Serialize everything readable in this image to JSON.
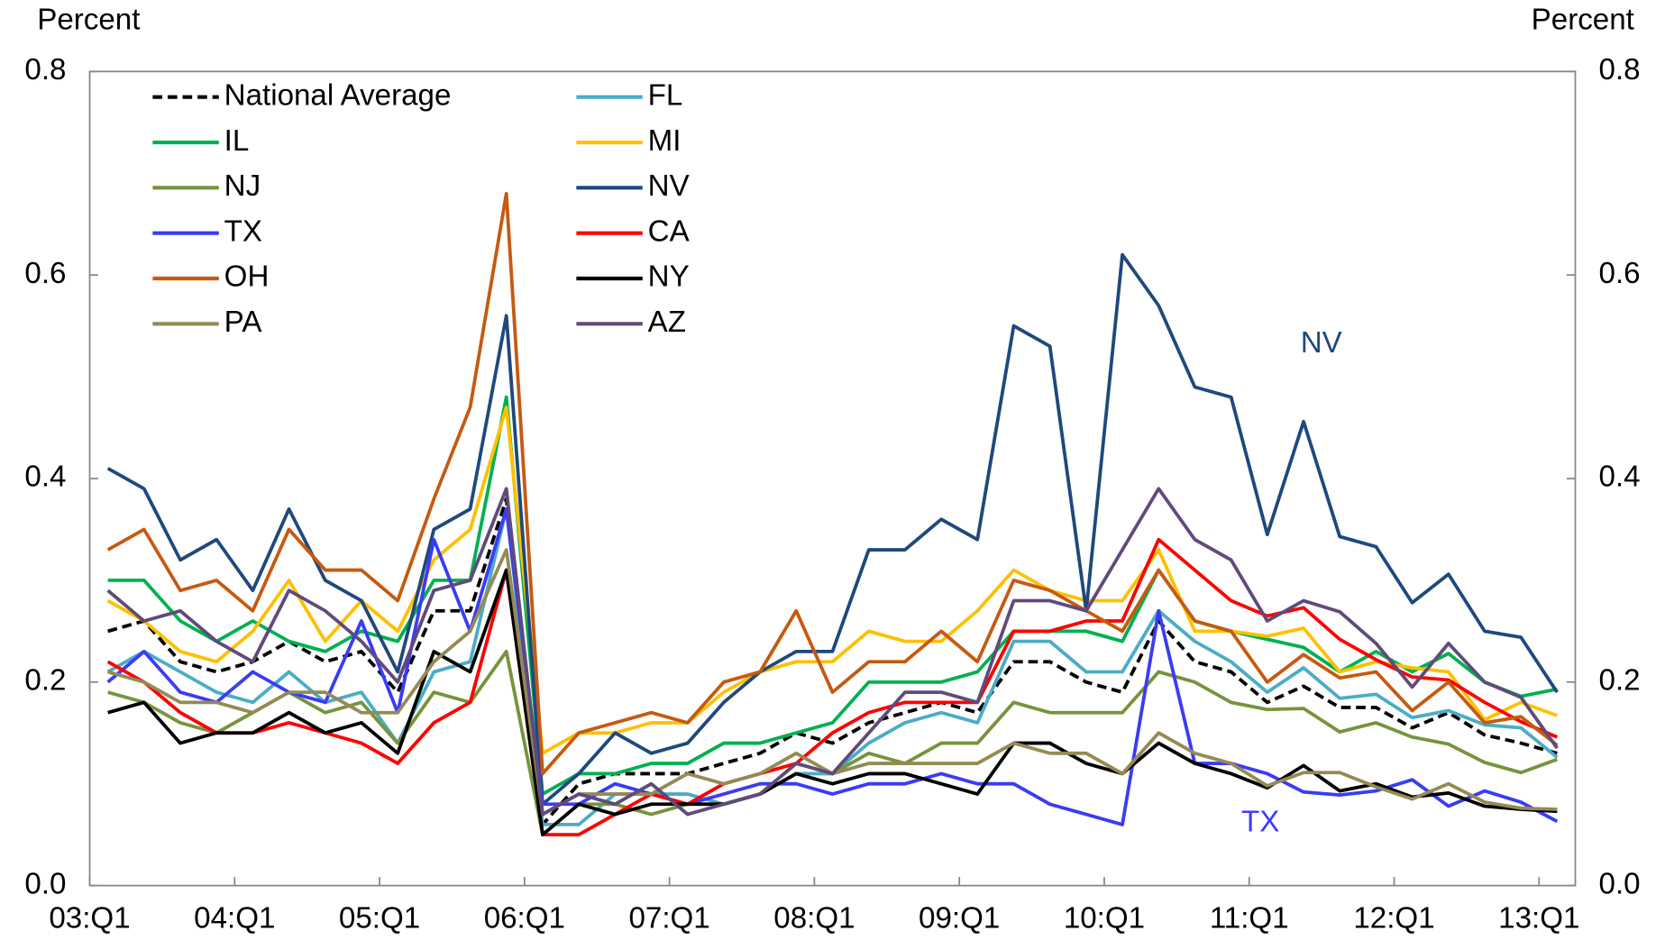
{
  "chart_data": {
    "type": "line",
    "y_label": "Percent",
    "y2_label": "Percent",
    "categories": [
      "03:Q1",
      null,
      null,
      null,
      "04:Q1",
      null,
      null,
      null,
      "05:Q1",
      null,
      null,
      null,
      "06:Q1",
      null,
      null,
      null,
      "07:Q1",
      null,
      null,
      null,
      "08:Q1",
      null,
      null,
      null,
      "09:Q1",
      null,
      null,
      null,
      "10:Q1",
      null,
      null,
      null,
      "11:Q1",
      null,
      null,
      null,
      "12:Q1",
      null,
      null,
      null,
      "13:Q1"
    ],
    "ylim": [
      0,
      0.8
    ],
    "yticks": [
      {
        "value": 0,
        "label": "0.0"
      },
      0.2,
      0.4,
      0.6,
      0.8
    ],
    "y2lim": [
      0,
      0.8
    ],
    "y2ticks": [
      {
        "value": 0,
        "label": "0.0"
      },
      0.2,
      0.4,
      0.6,
      0.8
    ],
    "grid": false,
    "legend": "upper left",
    "series": [
      {
        "name": "National Average",
        "color": "#000000",
        "dashed": true,
        "values": [
          0.25,
          0.26,
          0.22,
          0.21,
          0.22,
          0.24,
          0.22,
          0.23,
          0.19,
          0.27,
          0.27,
          0.38,
          0.06,
          0.1,
          0.11,
          0.11,
          0.11,
          0.12,
          0.13,
          0.15,
          0.14,
          0.16,
          0.17,
          0.18,
          0.17,
          0.22,
          0.22,
          0.2,
          0.19,
          0.26,
          0.22,
          0.21,
          0.18,
          0.196,
          0.175,
          0.175,
          0.155,
          0.17,
          0.148,
          0.14,
          0.13
        ]
      },
      {
        "name": "FL",
        "color": "#4bacc6",
        "values": [
          0.21,
          0.23,
          0.21,
          0.19,
          0.18,
          0.21,
          0.18,
          0.19,
          0.14,
          0.21,
          0.22,
          0.37,
          0.06,
          0.06,
          0.09,
          0.09,
          0.09,
          0.08,
          0.09,
          0.11,
          0.11,
          0.14,
          0.16,
          0.17,
          0.16,
          0.24,
          0.24,
          0.21,
          0.21,
          0.27,
          0.24,
          0.22,
          0.19,
          0.214,
          0.184,
          0.188,
          0.165,
          0.172,
          0.158,
          0.155,
          0.126
        ]
      },
      {
        "name": "IL",
        "color": "#00b050",
        "values": [
          0.3,
          0.3,
          0.26,
          0.24,
          0.26,
          0.24,
          0.23,
          0.25,
          0.24,
          0.3,
          0.3,
          0.48,
          0.09,
          0.11,
          0.11,
          0.12,
          0.12,
          0.14,
          0.14,
          0.15,
          0.16,
          0.2,
          0.2,
          0.2,
          0.21,
          0.25,
          0.25,
          0.25,
          0.24,
          0.31,
          0.26,
          0.25,
          0.242,
          0.234,
          0.21,
          0.23,
          0.21,
          0.228,
          0.2,
          0.186,
          0.193
        ]
      },
      {
        "name": "MI",
        "color": "#ffc000",
        "values": [
          0.28,
          0.26,
          0.23,
          0.22,
          0.25,
          0.3,
          0.24,
          0.28,
          0.25,
          0.32,
          0.35,
          0.47,
          0.13,
          0.15,
          0.15,
          0.16,
          0.16,
          0.19,
          0.21,
          0.22,
          0.22,
          0.25,
          0.24,
          0.24,
          0.27,
          0.31,
          0.29,
          0.28,
          0.28,
          0.33,
          0.25,
          0.25,
          0.245,
          0.253,
          0.21,
          0.22,
          0.214,
          0.21,
          0.163,
          0.18,
          0.167
        ]
      },
      {
        "name": "NJ",
        "color": "#77933c",
        "values": [
          0.19,
          0.18,
          0.16,
          0.15,
          0.17,
          0.19,
          0.17,
          0.18,
          0.14,
          0.19,
          0.18,
          0.23,
          0.05,
          0.08,
          0.08,
          0.07,
          0.08,
          0.08,
          0.09,
          0.12,
          0.11,
          0.13,
          0.12,
          0.14,
          0.14,
          0.18,
          0.17,
          0.17,
          0.17,
          0.21,
          0.2,
          0.18,
          0.173,
          0.174,
          0.151,
          0.16,
          0.146,
          0.139,
          0.121,
          0.111,
          0.124
        ]
      },
      {
        "name": "NV",
        "color": "#1f497d",
        "values": [
          0.41,
          0.39,
          0.32,
          0.34,
          0.29,
          0.37,
          0.3,
          0.28,
          0.21,
          0.35,
          0.37,
          0.56,
          0.08,
          0.11,
          0.15,
          0.13,
          0.14,
          0.18,
          0.21,
          0.23,
          0.23,
          0.33,
          0.33,
          0.36,
          0.34,
          0.55,
          0.53,
          0.27,
          0.62,
          0.57,
          0.49,
          0.48,
          0.345,
          0.456,
          0.343,
          0.333,
          0.278,
          0.306,
          0.25,
          0.244,
          0.19
        ]
      },
      {
        "name": "TX",
        "color": "#3b3bf5",
        "values": [
          0.2,
          0.23,
          0.19,
          0.18,
          0.21,
          0.19,
          0.18,
          0.26,
          0.17,
          0.34,
          0.25,
          0.37,
          0.08,
          0.08,
          0.1,
          0.09,
          0.08,
          0.09,
          0.1,
          0.1,
          0.09,
          0.1,
          0.1,
          0.11,
          0.1,
          0.1,
          0.08,
          0.07,
          0.06,
          0.27,
          0.12,
          0.12,
          0.11,
          0.092,
          0.089,
          0.093,
          0.104,
          0.078,
          0.093,
          0.082,
          0.063
        ]
      },
      {
        "name": "CA",
        "color": "#ff0000",
        "values": [
          0.22,
          0.2,
          0.17,
          0.15,
          0.15,
          0.16,
          0.15,
          0.14,
          0.12,
          0.16,
          0.18,
          0.31,
          0.05,
          0.05,
          0.07,
          0.09,
          0.08,
          0.1,
          0.11,
          0.12,
          0.15,
          0.17,
          0.18,
          0.18,
          0.18,
          0.25,
          0.25,
          0.26,
          0.26,
          0.34,
          0.31,
          0.28,
          0.265,
          0.273,
          0.242,
          0.222,
          0.205,
          0.202,
          0.18,
          0.161,
          0.146
        ]
      },
      {
        "name": "OH",
        "color": "#c55a11",
        "values": [
          0.33,
          0.35,
          0.29,
          0.3,
          0.27,
          0.35,
          0.31,
          0.31,
          0.28,
          0.38,
          0.47,
          0.68,
          0.11,
          0.15,
          0.16,
          0.17,
          0.16,
          0.2,
          0.21,
          0.27,
          0.19,
          0.22,
          0.22,
          0.25,
          0.22,
          0.3,
          0.29,
          0.27,
          0.25,
          0.31,
          0.26,
          0.25,
          0.2,
          0.227,
          0.204,
          0.21,
          0.172,
          0.2,
          0.16,
          0.166,
          0.138
        ]
      },
      {
        "name": "NY",
        "color": "#000000",
        "values": [
          0.17,
          0.18,
          0.14,
          0.15,
          0.15,
          0.17,
          0.15,
          0.16,
          0.13,
          0.23,
          0.21,
          0.31,
          0.05,
          0.08,
          0.07,
          0.08,
          0.08,
          0.08,
          0.09,
          0.11,
          0.1,
          0.11,
          0.11,
          0.1,
          0.09,
          0.14,
          0.14,
          0.12,
          0.11,
          0.14,
          0.12,
          0.11,
          0.096,
          0.118,
          0.093,
          0.1,
          0.087,
          0.091,
          0.078,
          0.075,
          0.073
        ]
      },
      {
        "name": "PA",
        "color": "#948a54",
        "values": [
          0.21,
          0.2,
          0.18,
          0.18,
          0.17,
          0.19,
          0.19,
          0.17,
          0.17,
          0.22,
          0.25,
          0.33,
          0.07,
          0.09,
          0.09,
          0.09,
          0.11,
          0.1,
          0.11,
          0.13,
          0.11,
          0.12,
          0.12,
          0.12,
          0.12,
          0.14,
          0.13,
          0.13,
          0.11,
          0.15,
          0.13,
          0.12,
          0.098,
          0.111,
          0.111,
          0.097,
          0.085,
          0.1,
          0.082,
          0.076,
          0.075
        ]
      },
      {
        "name": "AZ",
        "color": "#604a7b",
        "values": [
          0.29,
          0.26,
          0.27,
          0.24,
          0.22,
          0.29,
          0.27,
          0.24,
          0.2,
          0.29,
          0.3,
          0.39,
          0.07,
          0.09,
          0.08,
          0.1,
          0.07,
          0.08,
          0.09,
          0.12,
          0.11,
          0.15,
          0.19,
          0.19,
          0.18,
          0.28,
          0.28,
          0.27,
          0.33,
          0.39,
          0.34,
          0.32,
          0.26,
          0.28,
          0.269,
          0.238,
          0.195,
          0.238,
          0.2,
          0.185,
          0.135
        ]
      }
    ],
    "annotations": [
      {
        "text": "NV",
        "color": "#1f497d"
      },
      {
        "text": "TX",
        "color": "#3b3bf5"
      }
    ]
  }
}
